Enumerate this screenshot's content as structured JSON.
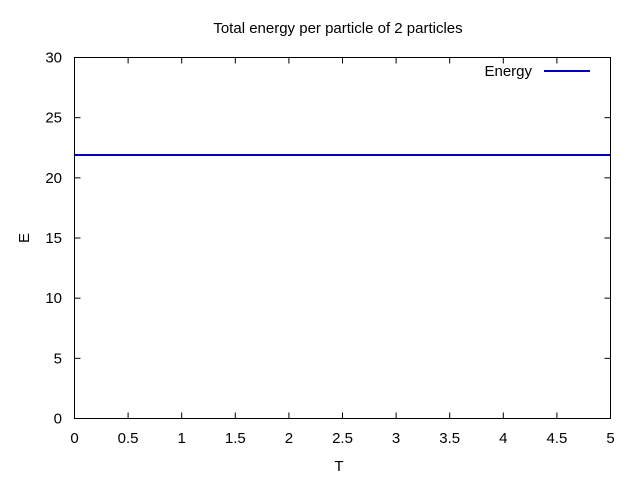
{
  "chart_data": {
    "type": "line",
    "title": "Total energy per particle of 2 particles",
    "xlabel": "T",
    "ylabel": "E",
    "xlim": [
      0,
      5
    ],
    "ylim": [
      0,
      30
    ],
    "xticks": [
      0,
      0.5,
      1,
      1.5,
      2,
      2.5,
      3,
      3.5,
      4,
      4.5,
      5
    ],
    "xtick_labels": [
      "0",
      "0.5",
      "1",
      "1.5",
      "2",
      "2.5",
      "3",
      "3.5",
      "4",
      "4.5",
      "5"
    ],
    "yticks": [
      0,
      5,
      10,
      15,
      20,
      25,
      30
    ],
    "ytick_labels": [
      "0",
      "5",
      "10",
      "15",
      "20",
      "25",
      "30"
    ],
    "grid": false,
    "legend": "top-right",
    "series": [
      {
        "name": "Energy",
        "color": "#0000c0",
        "x": [
          0,
          5
        ],
        "y": [
          21.9,
          21.9
        ]
      }
    ]
  }
}
